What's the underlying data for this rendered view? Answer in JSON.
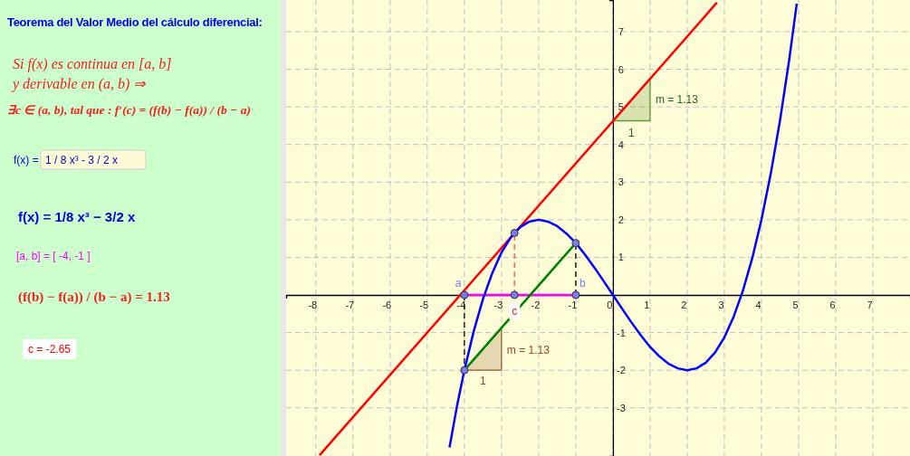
{
  "chart_data": {
    "type": "line",
    "title": "Teorema del Valor Medio del cálculo diferencial:",
    "xlim": [
      -8.8,
      8.0
    ],
    "ylim": [
      -4.28,
      7.84
    ],
    "xticks": [
      -8,
      -7,
      -6,
      -5,
      -4,
      -3,
      -2,
      -1,
      0,
      1,
      2,
      3,
      4,
      5,
      6,
      7
    ],
    "yticks": [
      -3,
      -2,
      -1,
      1,
      2,
      3,
      4,
      5,
      6,
      7
    ],
    "grid": true,
    "series": [
      {
        "type": "area",
        "color": "#996633",
        "x": [
          -4,
          -3,
          -3,
          -4
        ],
        "values": [
          -2,
          -2,
          -0.88,
          -2
        ]
      },
      {
        "type": "area",
        "color": "#669933",
        "x": [
          0,
          1,
          1,
          0
        ],
        "values": [
          4.63,
          4.63,
          5.76,
          4.63
        ]
      },
      {
        "type": "line",
        "line_style": "dashed",
        "color": "#000000",
        "x": [
          -4,
          -4
        ],
        "values": [
          0,
          -2
        ]
      },
      {
        "type": "line",
        "line_style": "dashed",
        "color": "#000000",
        "x": [
          -1,
          -1
        ],
        "values": [
          0,
          1.38
        ]
      },
      {
        "type": "line",
        "line_style": "dashed",
        "color": "#ff5050",
        "x": [
          -2.65,
          -2.65
        ],
        "values": [
          0,
          1.65
        ]
      },
      {
        "color": "#ff0000",
        "x": [
          -7.9,
          2.8
        ],
        "values": [
          -4.26,
          7.77
        ]
      },
      {
        "color": "#ff00ff",
        "x": [
          -4,
          -1
        ],
        "values": [
          0,
          0
        ]
      },
      {
        "color": "#008000",
        "x": [
          -4,
          -1
        ],
        "values": [
          -2,
          1.38
        ]
      },
      {
        "color": "#0000ff",
        "x": [
          -4.4,
          -4.2,
          -4,
          -3.75,
          -3.5,
          -3.25,
          -3,
          -2.75,
          -2.5,
          -2.25,
          -2,
          -1.75,
          -1.5,
          -1.25,
          -1,
          -0.75,
          -0.5,
          -0.25,
          0,
          0.25,
          0.5,
          0.75,
          1,
          1.25,
          1.5,
          1.75,
          2,
          2.25,
          2.5,
          2.75,
          3,
          3.25,
          3.5,
          3.75,
          4,
          4.25,
          4.5,
          4.75,
          4.95
        ],
        "values": [
          -4.05,
          -2.96,
          -2,
          -0.97,
          -0.11,
          0.58,
          1.13,
          1.53,
          1.8,
          1.95,
          2,
          1.95,
          1.83,
          1.63,
          1.38,
          1.07,
          0.73,
          0.37,
          0,
          -0.37,
          -0.73,
          -1.07,
          -1.38,
          -1.63,
          -1.83,
          -1.95,
          -2,
          -1.95,
          -1.8,
          -1.53,
          -1.13,
          -0.58,
          0.11,
          0.97,
          2,
          3.22,
          4.64,
          6.27,
          7.74
        ]
      },
      {
        "type": "scatter",
        "marker": "circle",
        "color": "#7b7bf0",
        "x": [
          -4,
          -1,
          -2.65,
          -2.65,
          -1,
          -4
        ],
        "values": [
          0,
          0,
          0,
          1.65,
          1.38,
          -2
        ]
      }
    ],
    "annotations": [
      "Si f(x) es continua en [a, b]",
      "y derivable en (a, b)  ⇒",
      "∃c ∈ (a, b), tal que : f′(c) = (f(b) − f(a)) / (b − a)",
      "f(x) =",
      "1 / 8 x³ - 3 / 2 x",
      "f(x) = 1/8 x³ − 3/2 x",
      "[a, b] = [ -4, -1 ]",
      "(f(b) − f(a)) / (b − a) = 1.13",
      "c = -2.65",
      {
        "text": "a",
        "x": -4,
        "y": 0
      },
      {
        "text": "b",
        "x": -1,
        "y": 0
      },
      {
        "text": "c",
        "x": -2.65,
        "y": 0
      },
      {
        "text": "m = 1.13",
        "x": -3,
        "y": -1.44
      },
      {
        "text": "1",
        "x": -3.5,
        "y": -2
      },
      {
        "text": "m = 1.13",
        "x": 1,
        "y": 5.2
      },
      {
        "text": "1",
        "x": 0.5,
        "y": 4.63
      }
    ]
  }
}
